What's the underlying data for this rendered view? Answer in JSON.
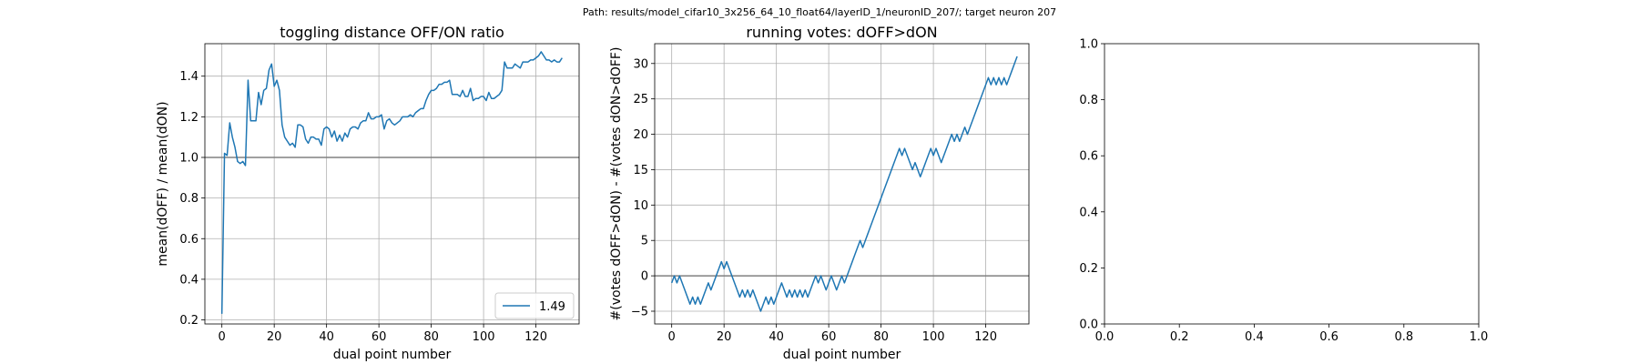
{
  "figure": {
    "suptitle": "Path: results/model_cifar10_3x256_64_10_float64/layerID_1/neuronID_207/; target neuron 207"
  },
  "colors": {
    "series": "#1f77b4",
    "hline": "#808080",
    "grid": "#b0b0b0"
  },
  "chart_data": [
    {
      "type": "line",
      "title": "toggling distance OFF/ON ratio",
      "xlabel": "dual point number",
      "ylabel": "mean(dOFF) / mean(dON)",
      "xlim": [
        -6.5,
        136.5
      ],
      "ylim": [
        0.18,
        1.56
      ],
      "xticks": [
        0,
        20,
        40,
        60,
        80,
        100,
        120
      ],
      "yticks": [
        0.2,
        0.4,
        0.6,
        0.8,
        1.0,
        1.2,
        1.4
      ],
      "ytick_labels": [
        "0.2",
        "0.4",
        "0.6",
        "0.8",
        "1.0",
        "1.2",
        "1.4"
      ],
      "grid": true,
      "hline": 1.0,
      "legend": {
        "position": "lower-right",
        "entries": [
          "1.49"
        ]
      },
      "series": [
        {
          "name": "1.49",
          "y": [
            0.23,
            1.02,
            1.01,
            1.17,
            1.1,
            1.05,
            0.98,
            0.97,
            0.98,
            0.96,
            1.38,
            1.18,
            1.18,
            1.18,
            1.32,
            1.26,
            1.33,
            1.34,
            1.43,
            1.46,
            1.35,
            1.38,
            1.33,
            1.16,
            1.1,
            1.08,
            1.06,
            1.07,
            1.05,
            1.16,
            1.16,
            1.15,
            1.09,
            1.07,
            1.1,
            1.1,
            1.09,
            1.09,
            1.06,
            1.14,
            1.15,
            1.14,
            1.1,
            1.13,
            1.08,
            1.11,
            1.08,
            1.12,
            1.1,
            1.14,
            1.15,
            1.15,
            1.14,
            1.17,
            1.18,
            1.18,
            1.22,
            1.19,
            1.19,
            1.2,
            1.2,
            1.21,
            1.14,
            1.18,
            1.19,
            1.17,
            1.16,
            1.17,
            1.18,
            1.2,
            1.2,
            1.2,
            1.21,
            1.2,
            1.22,
            1.23,
            1.24,
            1.24,
            1.28,
            1.31,
            1.33,
            1.33,
            1.34,
            1.36,
            1.36,
            1.37,
            1.37,
            1.38,
            1.31,
            1.31,
            1.31,
            1.3,
            1.33,
            1.3,
            1.3,
            1.34,
            1.28,
            1.29,
            1.29,
            1.3,
            1.3,
            1.28,
            1.32,
            1.29,
            1.29,
            1.3,
            1.31,
            1.33,
            1.47,
            1.44,
            1.44,
            1.44,
            1.46,
            1.45,
            1.44,
            1.47,
            1.47,
            1.47,
            1.48,
            1.48,
            1.49,
            1.5,
            1.52,
            1.5,
            1.48,
            1.48,
            1.47,
            1.48,
            1.47,
            1.47,
            1.49
          ]
        }
      ]
    },
    {
      "type": "line",
      "title": "running votes: dOFF>dON",
      "xlabel": "dual point number",
      "ylabel": "#(votes dOFF>dON) - #(votes dON>dOFF)",
      "xlim": [
        -6.5,
        136.5
      ],
      "ylim": [
        -6.8,
        32.8
      ],
      "xticks": [
        0,
        20,
        40,
        60,
        80,
        100,
        120
      ],
      "yticks": [
        -5,
        0,
        5,
        10,
        15,
        20,
        25,
        30
      ],
      "ytick_labels": [
        "−5",
        "0",
        "5",
        "10",
        "15",
        "20",
        "25",
        "30"
      ],
      "grid": true,
      "hline": 0,
      "series": [
        {
          "y": [
            -1,
            0,
            -1,
            0,
            -1,
            -2,
            -3,
            -4,
            -3,
            -4,
            -3,
            -4,
            -3,
            -2,
            -1,
            -2,
            -1,
            0,
            1,
            2,
            1,
            2,
            1,
            0,
            -1,
            -2,
            -3,
            -2,
            -3,
            -2,
            -3,
            -2,
            -3,
            -4,
            -5,
            -4,
            -3,
            -4,
            -3,
            -4,
            -3,
            -2,
            -1,
            -2,
            -3,
            -2,
            -3,
            -2,
            -3,
            -2,
            -3,
            -2,
            -3,
            -2,
            -1,
            0,
            -1,
            0,
            -1,
            -2,
            -1,
            0,
            -1,
            -2,
            -1,
            0,
            -1,
            0,
            1,
            2,
            3,
            4,
            5,
            4,
            5,
            6,
            7,
            8,
            9,
            10,
            11,
            12,
            13,
            14,
            15,
            16,
            17,
            18,
            17,
            18,
            17,
            16,
            15,
            16,
            15,
            14,
            15,
            16,
            17,
            18,
            17,
            18,
            17,
            16,
            17,
            18,
            19,
            20,
            19,
            20,
            19,
            20,
            21,
            20,
            21,
            22,
            23,
            24,
            25,
            26,
            27,
            28,
            27,
            28,
            27,
            28,
            27,
            28,
            27,
            28,
            29,
            30,
            31
          ]
        }
      ]
    },
    {
      "type": "line",
      "title": "",
      "xlim": [
        0.0,
        1.0
      ],
      "ylim": [
        0.0,
        1.0
      ],
      "xticks": [
        0.0,
        0.2,
        0.4,
        0.6,
        0.8,
        1.0
      ],
      "yticks": [
        0.0,
        0.2,
        0.4,
        0.6,
        0.8,
        1.0
      ],
      "xtick_labels": [
        "0.0",
        "0.2",
        "0.4",
        "0.6",
        "0.8",
        "1.0"
      ],
      "ytick_labels": [
        "0.0",
        "0.2",
        "0.4",
        "0.6",
        "0.8",
        "1.0"
      ],
      "grid": false,
      "series": []
    }
  ]
}
